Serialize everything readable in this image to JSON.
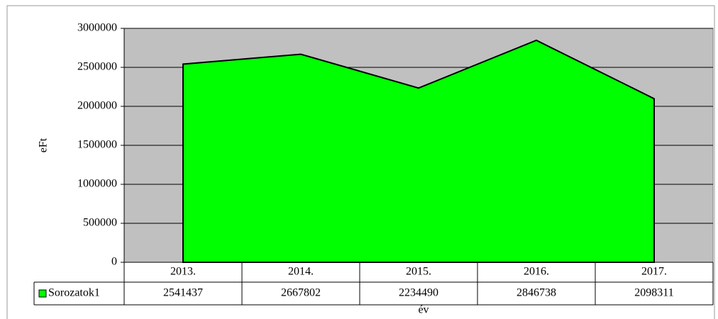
{
  "chart_data": {
    "type": "area",
    "categories": [
      "2013.",
      "2014.",
      "2015.",
      "2016.",
      "2017."
    ],
    "series": [
      {
        "name": "Sorozatok1",
        "color": "#00ff00",
        "values": [
          2541437,
          2667802,
          2234490,
          2846738,
          2098311
        ]
      }
    ],
    "ylabel": "eFt",
    "xlabel": "év",
    "ylim": [
      0,
      3000000
    ],
    "yticks": [
      0,
      500000,
      1000000,
      1500000,
      2000000,
      2500000,
      3000000
    ],
    "grid": true,
    "plot_background": "#c0c0c0"
  }
}
